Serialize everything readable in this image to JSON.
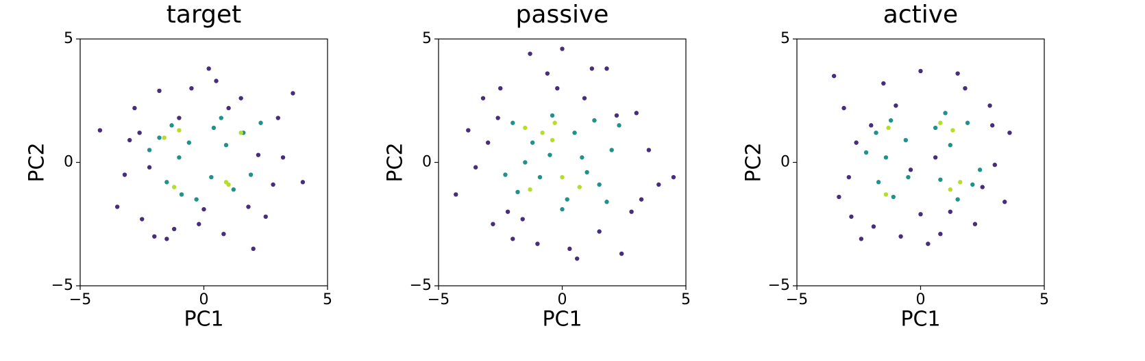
{
  "chart_data": [
    {
      "type": "scatter",
      "title": "target",
      "x_label": "PC1",
      "y_label": "PC2",
      "xlim": [
        -5,
        5
      ],
      "ylim": [
        -5,
        5
      ],
      "xticks": [
        {
          "value": -5,
          "label": "−5"
        },
        0,
        5
      ],
      "yticks": [
        {
          "value": -5,
          "label": "−5"
        },
        0,
        5
      ],
      "series": [
        {
          "color": "#472d7b",
          "x": [
            -4.2,
            -3.5,
            -3.0,
            -2.8,
            -2.5,
            -2.2,
            -1.8,
            -1.2,
            -0.5,
            0.2,
            0.8,
            1.5,
            2.0,
            2.5,
            3.0,
            3.6,
            4.0,
            -3.2,
            -2.0,
            -1.0,
            0.0,
            1.0,
            2.2,
            3.2,
            -0.2,
            0.5,
            1.8,
            -1.5,
            2.8,
            -2.6
          ],
          "y": [
            1.3,
            -1.8,
            0.9,
            2.2,
            -2.3,
            -0.2,
            2.9,
            -2.7,
            3.0,
            3.8,
            -2.9,
            2.6,
            -3.5,
            -2.2,
            1.8,
            2.8,
            -0.8,
            -0.5,
            -3.0,
            1.8,
            -1.9,
            2.2,
            0.3,
            0.2,
            -2.5,
            3.3,
            -1.8,
            -3.1,
            -0.9,
            1.2
          ]
        },
        {
          "color": "#21918c",
          "x": [
            -1.8,
            -1.3,
            -0.6,
            0.4,
            0.9,
            1.6,
            -1.5,
            -0.9,
            0.3,
            1.2,
            1.9,
            -2.2,
            2.3,
            -0.3,
            0.7,
            -1.0
          ],
          "y": [
            1.0,
            1.5,
            0.8,
            1.4,
            0.7,
            1.2,
            -0.8,
            -1.3,
            -0.6,
            -1.1,
            -0.5,
            0.5,
            1.6,
            -1.5,
            1.8,
            0.2
          ]
        },
        {
          "color": "#b5de2b",
          "x": [
            -1.6,
            -1.0,
            1.5,
            -1.2,
            0.9,
            1.0
          ],
          "y": [
            1.0,
            1.3,
            1.2,
            -1.0,
            -0.8,
            -0.9
          ]
        }
      ]
    },
    {
      "type": "scatter",
      "title": "passive",
      "x_label": "PC1",
      "y_label": "PC2",
      "xlim": [
        -5,
        5
      ],
      "ylim": [
        -5,
        5
      ],
      "xticks": [
        {
          "value": -5,
          "label": "−5"
        },
        0,
        5
      ],
      "yticks": [
        {
          "value": -5,
          "label": "−5"
        },
        0,
        5
      ],
      "series": [
        {
          "color": "#472d7b",
          "x": [
            -4.3,
            -3.8,
            -3.2,
            -2.8,
            -2.5,
            -2.0,
            -1.3,
            -0.6,
            0.0,
            0.6,
            1.2,
            1.8,
            2.4,
            3.0,
            3.5,
            4.5,
            -3.5,
            -2.2,
            -1.0,
            0.3,
            1.5,
            2.8,
            3.9,
            -3.0,
            -0.2,
            0.9,
            2.2,
            -1.6,
            3.2,
            -2.6
          ],
          "y": [
            -1.3,
            1.3,
            2.6,
            -2.5,
            3.0,
            -3.1,
            4.4,
            3.6,
            4.6,
            -3.9,
            3.8,
            3.8,
            -3.7,
            2.0,
            0.5,
            -0.6,
            -0.2,
            -2.0,
            -3.3,
            -3.5,
            -2.8,
            -2.0,
            -0.9,
            0.8,
            3.0,
            2.6,
            1.9,
            -2.3,
            -1.5,
            1.8
          ]
        },
        {
          "color": "#21918c",
          "x": [
            -2.0,
            -1.2,
            -0.4,
            0.5,
            1.3,
            2.0,
            -1.8,
            -0.9,
            0.2,
            1.0,
            1.8,
            -0.5,
            0.8,
            -1.5,
            1.5,
            2.3,
            -2.3,
            0.0
          ],
          "y": [
            1.6,
            0.8,
            1.9,
            1.2,
            1.7,
            0.5,
            -1.2,
            -0.6,
            -1.5,
            -0.4,
            -1.6,
            0.3,
            0.2,
            0.0,
            -0.9,
            1.5,
            -0.5,
            -1.9
          ]
        },
        {
          "color": "#b5de2b",
          "x": [
            -1.5,
            -0.8,
            -0.3,
            0.0,
            0.7,
            -0.4,
            -1.3
          ],
          "y": [
            1.4,
            1.2,
            1.6,
            -0.6,
            -1.0,
            0.9,
            -1.1
          ]
        }
      ]
    },
    {
      "type": "scatter",
      "title": "active",
      "x_label": "PC1",
      "y_label": "PC2",
      "xlim": [
        -5,
        5
      ],
      "ylim": [
        -5,
        5
      ],
      "xticks": [
        {
          "value": -5,
          "label": "−5"
        },
        0,
        5
      ],
      "yticks": [
        {
          "value": -5,
          "label": "−5"
        },
        0,
        5
      ],
      "series": [
        {
          "color": "#472d7b",
          "x": [
            -3.5,
            -3.1,
            -2.8,
            -2.4,
            -2.0,
            -1.5,
            -0.8,
            0.0,
            0.8,
            1.5,
            2.2,
            2.8,
            3.4,
            3.6,
            -3.3,
            -2.6,
            -1.0,
            0.3,
            1.2,
            2.5,
            3.0,
            -0.4,
            0.6,
            1.8,
            -1.9,
            2.9,
            -2.9,
            0.0
          ],
          "y": [
            3.5,
            2.2,
            -2.2,
            -3.1,
            1.5,
            3.2,
            -3.0,
            3.7,
            -2.9,
            3.6,
            -2.5,
            2.3,
            -1.6,
            1.2,
            -1.4,
            0.8,
            2.3,
            -3.3,
            -2.0,
            -1.0,
            -0.1,
            -0.3,
            0.2,
            3.0,
            -2.6,
            1.5,
            -0.6,
            -2.1
          ]
        },
        {
          "color": "#21918c",
          "x": [
            -1.8,
            -1.2,
            -0.6,
            0.6,
            1.2,
            1.9,
            -1.7,
            -1.1,
            -0.5,
            0.8,
            1.5,
            2.1,
            -2.2,
            2.4,
            -1.4,
            1.0
          ],
          "y": [
            1.2,
            1.7,
            0.9,
            1.4,
            0.7,
            1.6,
            -0.8,
            -1.4,
            -0.6,
            -0.7,
            -1.5,
            -0.9,
            0.4,
            -0.3,
            0.2,
            2.0
          ]
        },
        {
          "color": "#b5de2b",
          "x": [
            -1.3,
            1.3,
            1.6,
            -1.4,
            1.2,
            0.8
          ],
          "y": [
            1.4,
            1.3,
            -0.8,
            -1.3,
            -1.1,
            1.6
          ]
        }
      ]
    }
  ]
}
